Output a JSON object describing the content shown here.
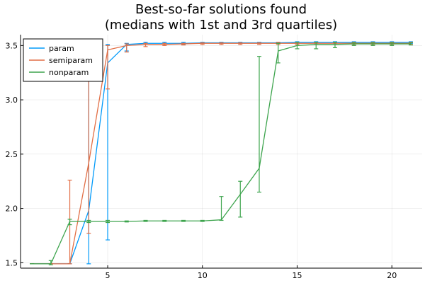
{
  "chart_data": {
    "type": "line",
    "title": "Best-so-far solutions found",
    "subtitle": "(medians with 1st and 3rd quartiles)",
    "xlabel": "",
    "ylabel": "",
    "xlim": [
      0.4,
      21.6
    ],
    "ylim": [
      1.45,
      3.6
    ],
    "xticks": [
      5,
      10,
      15,
      20
    ],
    "yticks": [
      1.5,
      2.0,
      2.5,
      3.0,
      3.5
    ],
    "xtick_labels": [
      "5",
      "10",
      "15",
      "20"
    ],
    "ytick_labels": [
      "1.5",
      "2.0",
      "2.5",
      "3.0",
      "3.5"
    ],
    "grid": true,
    "legend_position": "top-left",
    "series": [
      {
        "name": "param",
        "color": "#009AFA",
        "x": [
          1,
          2,
          3,
          4,
          5,
          6,
          7,
          8,
          9,
          10,
          11,
          12,
          13,
          14,
          15,
          16,
          17,
          18,
          19,
          20,
          21
        ],
        "y": [
          1.49,
          1.49,
          1.49,
          1.98,
          3.34,
          3.51,
          3.52,
          3.52,
          3.52,
          3.525,
          3.525,
          3.525,
          3.525,
          3.525,
          3.53,
          3.53,
          3.53,
          3.53,
          3.53,
          3.53,
          3.53
        ],
        "lower": [
          1.49,
          1.49,
          1.49,
          1.49,
          1.71,
          3.45,
          3.51,
          3.51,
          3.51,
          3.52,
          3.52,
          3.52,
          3.52,
          3.52,
          3.52,
          3.52,
          3.52,
          3.52,
          3.52,
          3.52,
          3.52
        ],
        "upper": [
          1.49,
          1.49,
          1.49,
          3.48,
          3.51,
          3.52,
          3.53,
          3.53,
          3.53,
          3.53,
          3.53,
          3.53,
          3.53,
          3.53,
          3.535,
          3.535,
          3.535,
          3.535,
          3.535,
          3.535,
          3.535
        ]
      },
      {
        "name": "semiparam",
        "color": "#E26F46",
        "x": [
          1,
          2,
          3,
          4,
          5,
          6,
          7,
          8,
          9,
          10,
          11,
          12,
          13,
          14,
          15,
          16,
          17,
          18,
          19,
          20,
          21
        ],
        "y": [
          1.49,
          1.49,
          1.49,
          2.42,
          3.46,
          3.5,
          3.51,
          3.51,
          3.515,
          3.52,
          3.52,
          3.52,
          3.52,
          3.52,
          3.52,
          3.52,
          3.52,
          3.52,
          3.52,
          3.52,
          3.52
        ],
        "lower": [
          1.49,
          1.49,
          1.49,
          1.77,
          3.1,
          3.44,
          3.49,
          3.5,
          3.505,
          3.51,
          3.51,
          3.51,
          3.51,
          3.51,
          3.51,
          3.51,
          3.51,
          3.51,
          3.51,
          3.51,
          3.51
        ],
        "upper": [
          1.49,
          1.49,
          2.26,
          3.48,
          3.5,
          3.515,
          3.52,
          3.52,
          3.52,
          3.525,
          3.525,
          3.525,
          3.525,
          3.53,
          3.53,
          3.53,
          3.53,
          3.53,
          3.53,
          3.53,
          3.53
        ]
      },
      {
        "name": "nonparam",
        "color": "#3DA44D",
        "x": [
          1,
          2,
          3,
          4,
          5,
          6,
          7,
          8,
          9,
          10,
          11,
          12,
          13,
          14,
          15,
          16,
          17,
          18,
          19,
          20,
          21
        ],
        "y": [
          1.49,
          1.49,
          1.88,
          1.88,
          1.88,
          1.88,
          1.885,
          1.885,
          1.885,
          1.885,
          1.895,
          2.13,
          2.37,
          3.45,
          3.5,
          3.51,
          3.51,
          3.515,
          3.515,
          3.515,
          3.515
        ],
        "lower": [
          1.49,
          1.48,
          1.85,
          1.87,
          1.87,
          1.875,
          1.88,
          1.88,
          1.88,
          1.88,
          1.89,
          1.92,
          2.15,
          3.34,
          3.47,
          3.47,
          3.48,
          3.5,
          3.5,
          3.5,
          3.505
        ],
        "upper": [
          1.49,
          1.52,
          1.9,
          1.89,
          1.89,
          1.885,
          1.89,
          1.89,
          1.89,
          1.89,
          2.11,
          2.25,
          3.4,
          3.52,
          3.53,
          3.53,
          3.53,
          3.525,
          3.525,
          3.525,
          3.525
        ]
      }
    ]
  }
}
